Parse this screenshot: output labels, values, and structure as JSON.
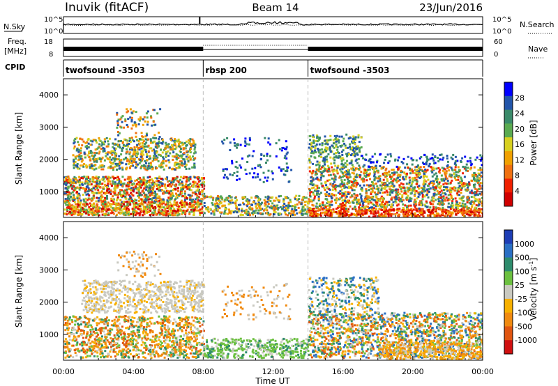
{
  "header": {
    "station": "Inuvik (fitACF)",
    "beam": "Beam 14",
    "date": "23/Jun/2016"
  },
  "colors": {
    "power_scale": [
      "#0000ff",
      "#2255aa",
      "#3a8a6a",
      "#5aaa50",
      "#d8d020",
      "#f0a000",
      "#f07010",
      "#f02000",
      "#d00000"
    ],
    "velocity_scale": [
      "#1d3db5",
      "#2a6fc4",
      "#2e8c6d",
      "#6cc040",
      "#c9c9c0",
      "#f7b000",
      "#f08a10",
      "#e05510",
      "#d01010"
    ]
  },
  "chart_data": [
    {
      "type": "line",
      "panel": "nsky-nsearch",
      "left_label": "N.Sky",
      "right_label": "N.Search",
      "left_ticks": [
        "10^5",
        "10^0"
      ],
      "right_ticks": [
        "10^5",
        "10^0"
      ]
    },
    {
      "type": "line",
      "panel": "freq-nave",
      "left_label_line1": "Freq.",
      "left_label_line2": "[MHz]",
      "right_label": "Nave",
      "left_ticks": [
        "18",
        "8"
      ],
      "right_ticks": [
        "60",
        "0"
      ]
    },
    {
      "type": "bar",
      "panel": "cpid",
      "label": "CPID",
      "segments": [
        {
          "name": "twofsound -3503",
          "start": 0,
          "end": 8
        },
        {
          "name": "rbsp 200",
          "start": 8,
          "end": 14
        },
        {
          "name": "twofsound -3503",
          "start": 14,
          "end": 24
        }
      ]
    },
    {
      "type": "heatmap",
      "panel": "power",
      "ylabel": "Slant Range [km]",
      "yticks": [
        1000,
        2000,
        3000,
        4000
      ],
      "colorbar_label": "Power [dB]",
      "colorbar_ticks": [
        "28",
        "24",
        "20",
        "16",
        "12",
        "8",
        "4"
      ]
    },
    {
      "type": "heatmap",
      "panel": "velocity",
      "ylabel": "Slant Range [km]",
      "yticks": [
        1000,
        2000,
        3000,
        4000
      ],
      "colorbar_label": "Velocity [m s",
      "colorbar_label_sup": "-1",
      "colorbar_label_end": "]",
      "colorbar_ticks": [
        "1000",
        "500",
        "100",
        "25",
        "-25",
        "-100",
        "-500",
        "-1000"
      ],
      "xlabel": "Time UT",
      "xticks": [
        "00:00",
        "04:00",
        "08:00",
        "12:00",
        "16:00",
        "20:00",
        "00:00"
      ]
    }
  ]
}
